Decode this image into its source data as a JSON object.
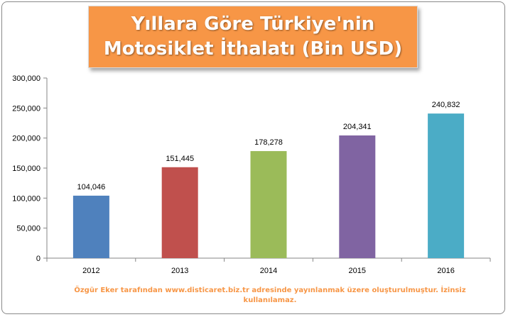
{
  "chart_data": {
    "type": "bar",
    "title": "Yıllara Göre Türkiye'nin Motosiklet İthalatı (Bin USD)",
    "categories": [
      "2012",
      "2013",
      "2014",
      "2015",
      "2016"
    ],
    "values": [
      104046,
      151445,
      178278,
      204341,
      240832
    ],
    "value_labels": [
      "104,046",
      "151,445",
      "178,278",
      "204,341",
      "240,832"
    ],
    "bar_colors": [
      "#4f81bd",
      "#c0504d",
      "#9bbb59",
      "#8064a2",
      "#4bacc6"
    ],
    "ylim": [
      0,
      300000
    ],
    "y_ticks": [
      0,
      50000,
      100000,
      150000,
      200000,
      250000,
      300000
    ],
    "y_tick_labels": [
      "0",
      "50,000",
      "100,000",
      "150,000",
      "200,000",
      "250,000",
      "300,000"
    ],
    "grid": false,
    "legend": "none"
  },
  "title_box_color": "#f79646",
  "footer": {
    "text": "Özgür Eker tarafından www.disticaret.biz.tr adresinde yayınlanmak üzere oluşturulmuştur. İzinsiz kullanılamaz."
  }
}
